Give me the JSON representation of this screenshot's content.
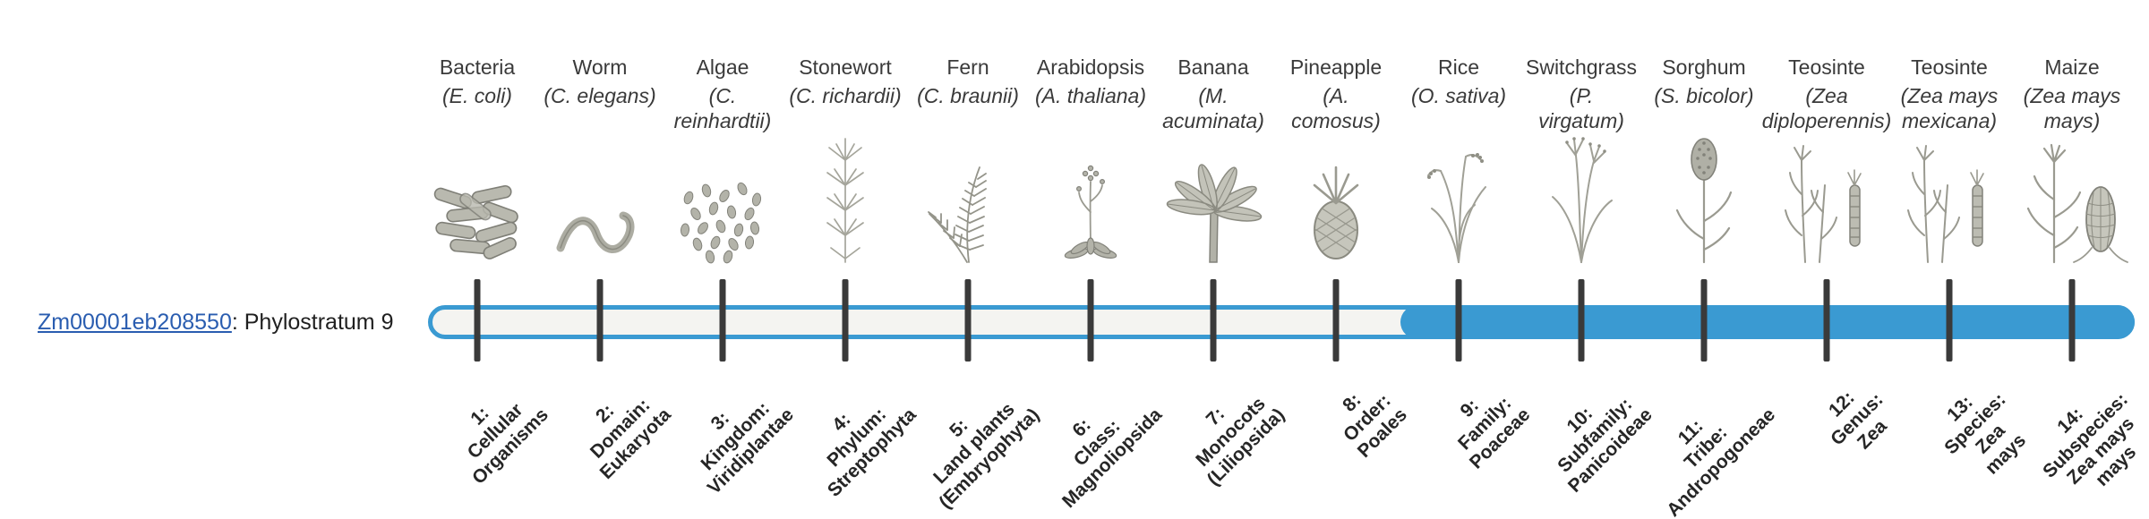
{
  "gene": {
    "id": "Zm00001eb208550",
    "suffix": ": Phylostratum 9",
    "phylostratum": 9
  },
  "colors": {
    "bar_blue": "#3a9ad2",
    "bar_track_fill": "#f4f4f1",
    "tick": "#3a3a3a",
    "link": "#2a5db0"
  },
  "organisms": [
    {
      "common": "Bacteria",
      "scientific": "(E. coli)",
      "icon": "bacteria-icon",
      "stratum": "1:\nCellular\nOrganisms"
    },
    {
      "common": "Worm",
      "scientific": "(C. elegans)",
      "icon": "worm-icon",
      "stratum": "2:\nDomain:\nEukaryota"
    },
    {
      "common": "Algae",
      "scientific": "(C.\nreinhardtii)",
      "icon": "algae-icon",
      "stratum": "3:\nKingdom:\nViridiplantae"
    },
    {
      "common": "Stonewort",
      "scientific": "(C. richardii)",
      "icon": "stonewort-icon",
      "stratum": "4:\nPhylum:\nStreptophyta"
    },
    {
      "common": "Fern",
      "scientific": "(C. braunii)",
      "icon": "fern-icon",
      "stratum": "5:\nLand plants\n(Embryophyta)"
    },
    {
      "common": "Arabidopsis",
      "scientific": "(A. thaliana)",
      "icon": "arabidopsis-icon",
      "stratum": "6:\nClass:\nMagnoliopsida"
    },
    {
      "common": "Banana",
      "scientific": "(M.\nacuminata)",
      "icon": "banana-icon",
      "stratum": "7:\nMonocots\n(Liliopsida)"
    },
    {
      "common": "Pineapple",
      "scientific": "(A.\ncomosus)",
      "icon": "pineapple-icon",
      "stratum": "8:\nOrder:\nPoales"
    },
    {
      "common": "Rice",
      "scientific": "(O. sativa)",
      "icon": "rice-icon",
      "stratum": "9:\nFamily:\nPoaceae"
    },
    {
      "common": "Switchgrass",
      "scientific": "(P.\nvirgatum)",
      "icon": "switchgrass-icon",
      "stratum": "10:\nSubfamily:\nPanicoideae"
    },
    {
      "common": "Sorghum",
      "scientific": "(S. bicolor)",
      "icon": "sorghum-icon",
      "stratum": "11:\nTribe:\nAndropogoneae"
    },
    {
      "common": "Teosinte",
      "scientific": "(Zea\ndiploperennis)",
      "icon": "teosinte-icon",
      "stratum": "12:\nGenus:\nZea"
    },
    {
      "common": "Teosinte",
      "scientific": "(Zea mays\nmexicana)",
      "icon": "teosinte-icon",
      "stratum": "13:\nSpecies:\nZea\nmays"
    },
    {
      "common": "Maize",
      "scientific": "(Zea mays\nmays)",
      "icon": "maize-icon",
      "stratum": "14:\nSubspecies:\nZea mays\nmays"
    }
  ]
}
